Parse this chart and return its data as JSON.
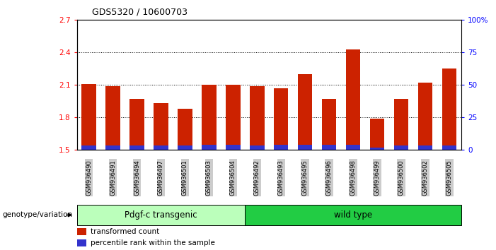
{
  "title": "GDS5320 / 10600703",
  "samples": [
    "GSM936490",
    "GSM936491",
    "GSM936494",
    "GSM936497",
    "GSM936501",
    "GSM936503",
    "GSM936504",
    "GSM936492",
    "GSM936493",
    "GSM936495",
    "GSM936496",
    "GSM936498",
    "GSM936499",
    "GSM936500",
    "GSM936502",
    "GSM936505"
  ],
  "red_values": [
    2.11,
    2.09,
    1.97,
    1.93,
    1.88,
    2.1,
    2.1,
    2.09,
    2.07,
    2.2,
    1.97,
    2.43,
    1.79,
    1.97,
    2.12,
    2.25
  ],
  "blue_values": [
    0.04,
    0.04,
    0.04,
    0.04,
    0.04,
    0.05,
    0.05,
    0.04,
    0.05,
    0.05,
    0.05,
    0.05,
    0.02,
    0.04,
    0.04,
    0.04
  ],
  "y_min": 1.5,
  "y_max": 2.7,
  "y_ticks": [
    1.5,
    1.8,
    2.1,
    2.4,
    2.7
  ],
  "y2_ticks": [
    0,
    25,
    50,
    75,
    100
  ],
  "y2_labels": [
    "0",
    "25",
    "50",
    "75",
    "100%"
  ],
  "group1_label": "Pdgf-c transgenic",
  "group2_label": "wild type",
  "group1_count": 7,
  "group2_count": 9,
  "bar_color_red": "#cc2200",
  "bar_color_blue": "#3333cc",
  "group1_bg": "#bbffbb",
  "group2_bg": "#22cc44",
  "xtick_bg": "#cccccc",
  "legend_red": "transformed count",
  "legend_blue": "percentile rank within the sample",
  "genotype_label": "genotype/variation",
  "bar_width": 0.6
}
